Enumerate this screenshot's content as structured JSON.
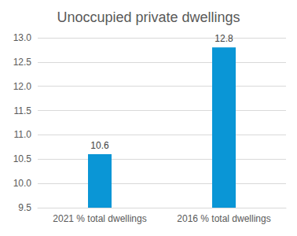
{
  "chart_data": {
    "type": "bar",
    "title": "Unoccupied private dwellings",
    "categories": [
      "2021 % total dwellings",
      "2016 % total dwellings"
    ],
    "values": [
      10.6,
      12.8
    ],
    "color": "#0a96d6",
    "ylim": [
      9.5,
      13.0
    ],
    "yticks": [
      9.5,
      {
        "value": 10,
        "label": "10.0"
      },
      10.5,
      {
        "value": 11,
        "label": "11.0"
      },
      11.5,
      {
        "value": 12,
        "label": "12.0"
      },
      12.5,
      {
        "value": 13,
        "label": "13.0"
      }
    ],
    "grid": true,
    "data_labels": true
  }
}
